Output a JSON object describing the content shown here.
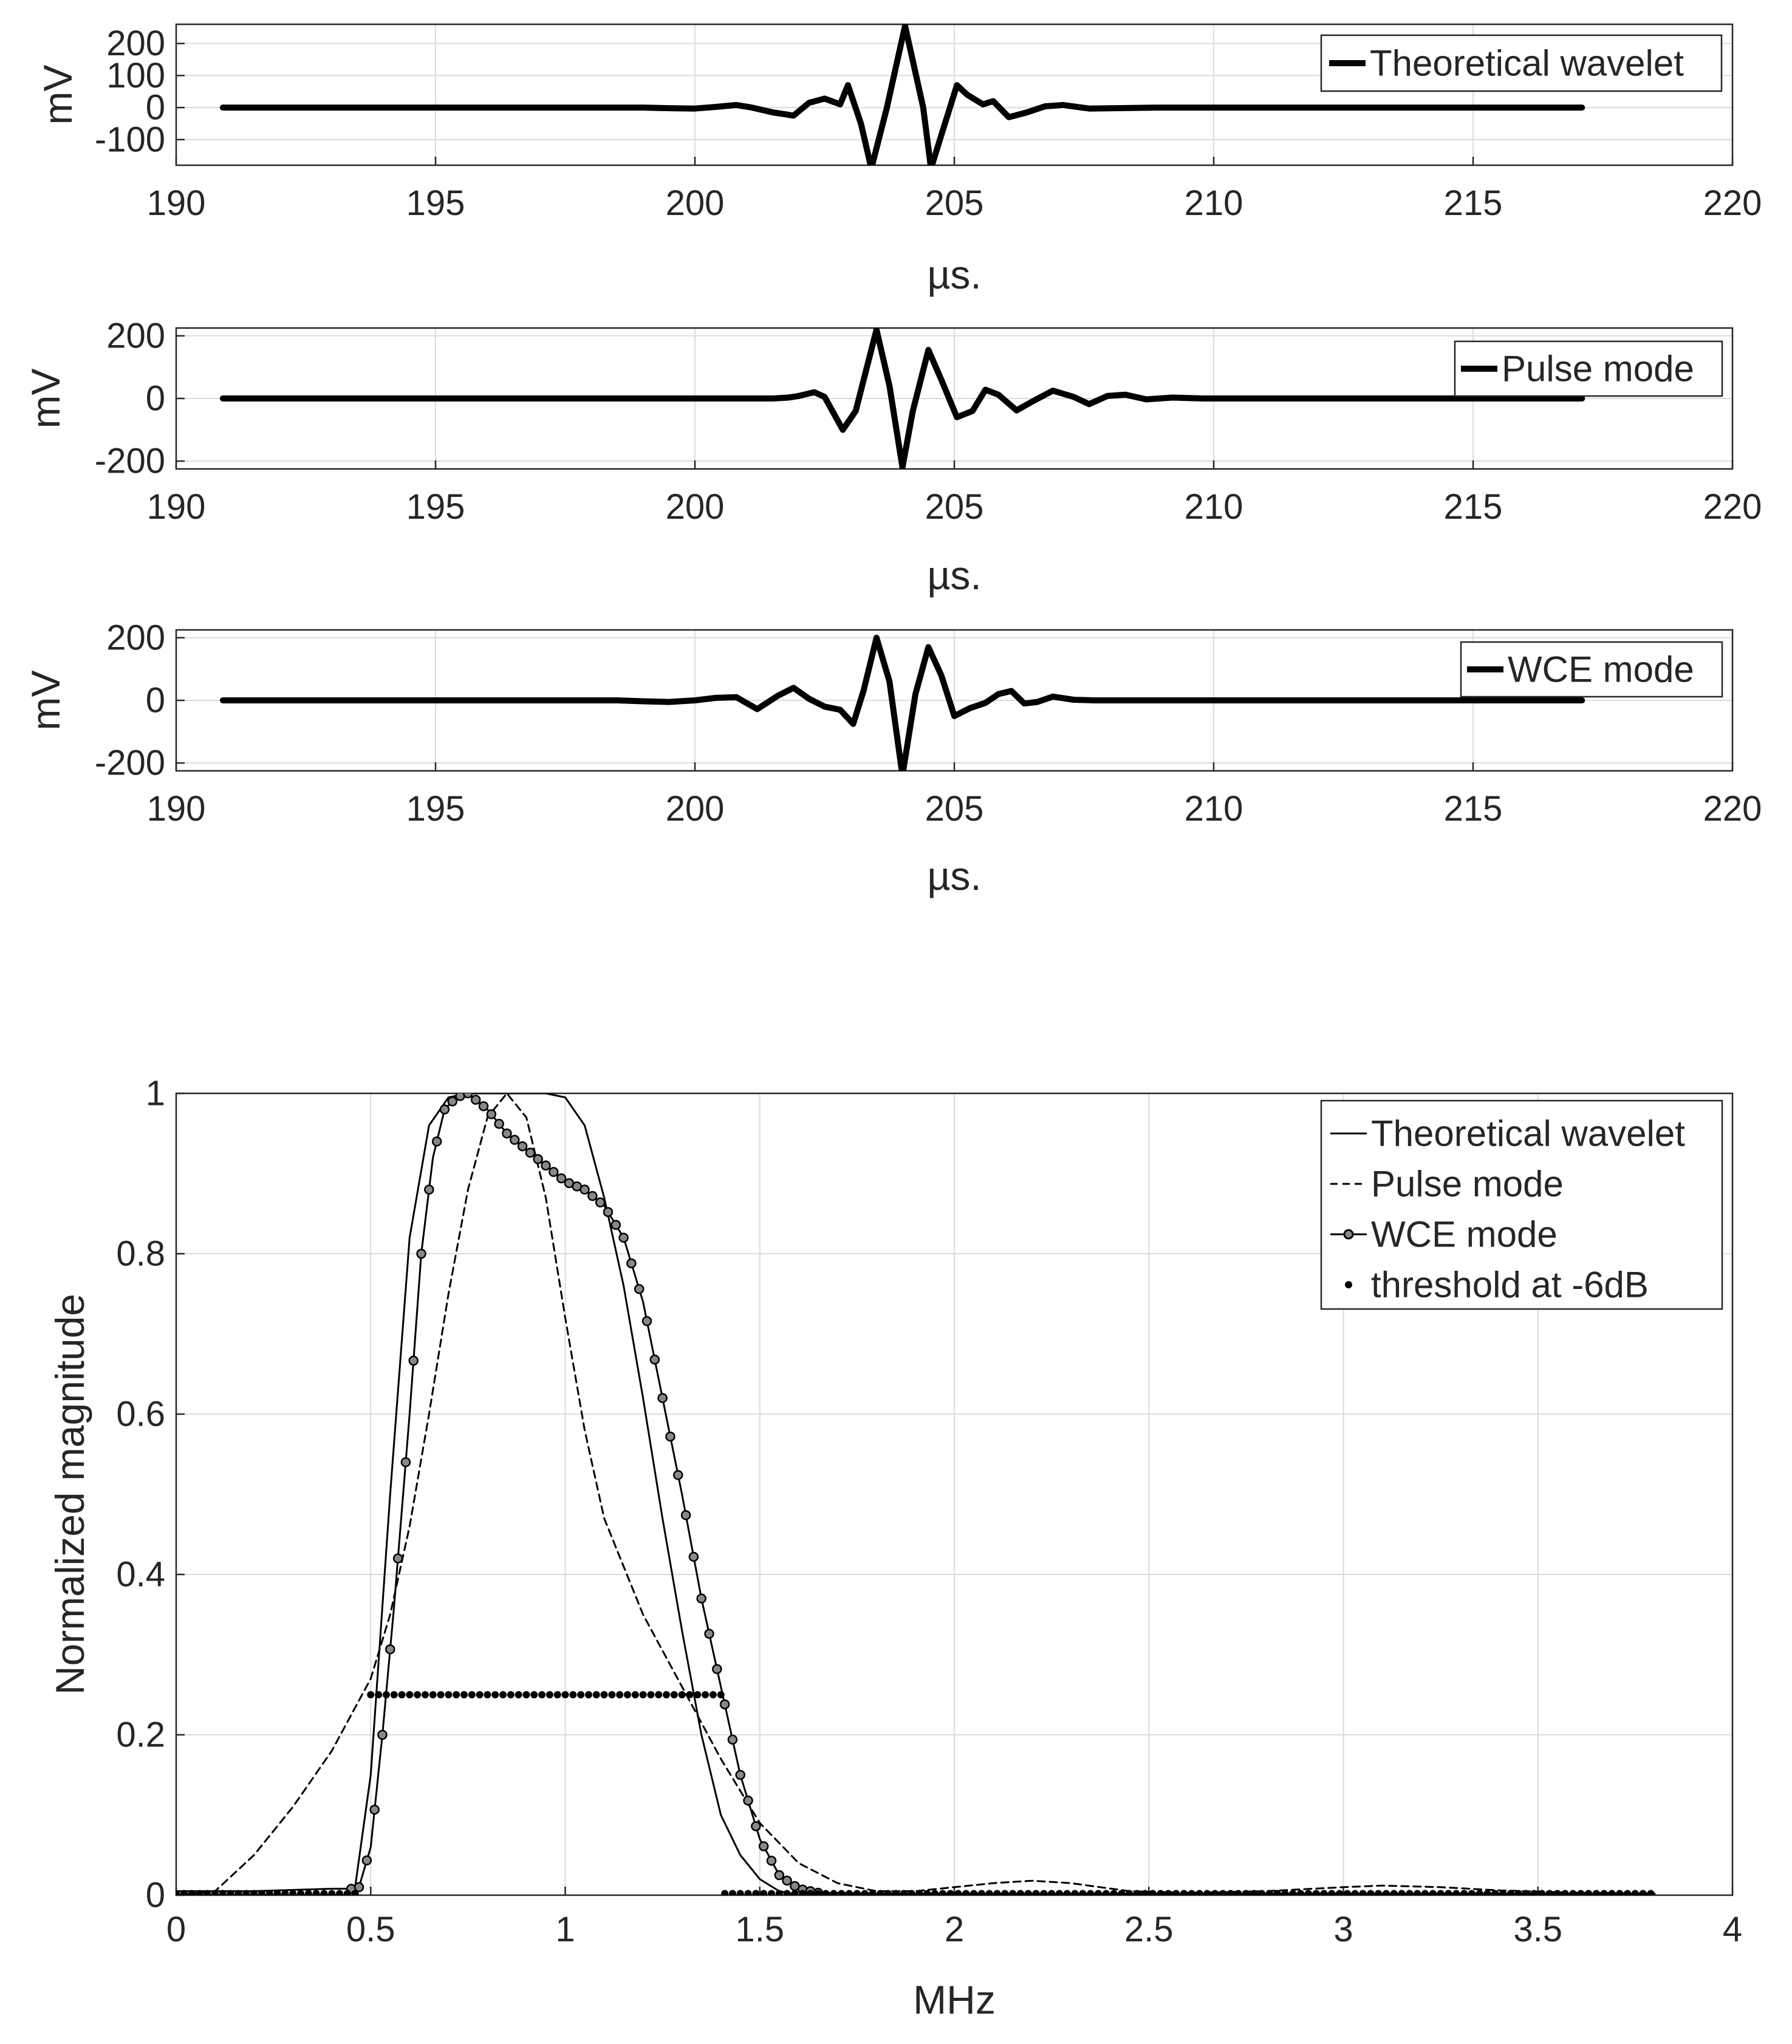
{
  "chart_data": [
    {
      "type": "line",
      "panel": "time-theoretical",
      "xlabel": "µs.",
      "ylabel": "mV",
      "xlim": [
        190,
        220
      ],
      "ylim": [
        -180,
        260
      ],
      "xticks": [
        190,
        195,
        200,
        205,
        210,
        215,
        220
      ],
      "xtick_labels": [
        "190",
        "195",
        "200",
        "205",
        "210",
        "215",
        "220"
      ],
      "yticks": [
        200,
        100,
        0,
        -100
      ],
      "ytick_labels": [
        "200",
        "100",
        "0",
        "-100"
      ],
      "grid": true,
      "legend": {
        "position": "top-right",
        "entries": [
          "Theoretical wavelet"
        ]
      },
      "series": [
        {
          "name": "Theoretical wavelet",
          "style": "thick-solid",
          "x": [
            190.9,
            199,
            199.5,
            200,
            200.4,
            200.8,
            201.1,
            201.5,
            201.9,
            202.2,
            202.5,
            202.8,
            202.95,
            203.2,
            203.4,
            203.7,
            204.05,
            204.4,
            204.55,
            204.8,
            205.05,
            205.25,
            205.55,
            205.75,
            206.05,
            206.4,
            206.75,
            207.1,
            207.6,
            208.1,
            209,
            217.1
          ],
          "values": [
            0,
            0,
            -2,
            -3,
            2,
            8,
            0,
            -15,
            -25,
            15,
            28,
            10,
            70,
            -50,
            -190,
            0,
            255,
            0,
            -190,
            -60,
            70,
            40,
            10,
            20,
            -30,
            -15,
            4,
            8,
            -3,
            -2,
            0,
            0
          ]
        }
      ]
    },
    {
      "type": "line",
      "panel": "time-pulse",
      "xlabel": "µs.",
      "ylabel": "mV",
      "xlim": [
        190,
        220
      ],
      "ylim": [
        -225,
        225
      ],
      "xticks": [
        190,
        195,
        200,
        205,
        210,
        215,
        220
      ],
      "xtick_labels": [
        "190",
        "195",
        "200",
        "205",
        "210",
        "215",
        "220"
      ],
      "yticks": [
        200,
        0,
        -200
      ],
      "ytick_labels": [
        "200",
        "0",
        "-200"
      ],
      "grid": true,
      "legend": {
        "position": "top-right",
        "entries": [
          "Pulse mode"
        ]
      },
      "series": [
        {
          "name": "Pulse mode",
          "style": "thick-solid",
          "x": [
            190.9,
            201.5,
            201.8,
            202.0,
            202.3,
            202.5,
            202.85,
            203.1,
            203.5,
            203.75,
            204.0,
            204.2,
            204.5,
            204.75,
            205.05,
            205.35,
            205.6,
            205.85,
            206.2,
            206.5,
            206.9,
            207.3,
            207.6,
            207.95,
            208.3,
            208.7,
            209.2,
            209.8,
            217.1
          ],
          "values": [
            0,
            0,
            3,
            8,
            20,
            5,
            -100,
            -40,
            220,
            40,
            -220,
            -40,
            155,
            60,
            -60,
            -40,
            28,
            12,
            -38,
            -10,
            25,
            5,
            -18,
            8,
            12,
            -3,
            3,
            0,
            0
          ]
        }
      ]
    },
    {
      "type": "line",
      "panel": "time-wce",
      "xlabel": "µs.",
      "ylabel": "mV",
      "xlim": [
        190,
        220
      ],
      "ylim": [
        -225,
        225
      ],
      "xticks": [
        190,
        195,
        200,
        205,
        210,
        215,
        220
      ],
      "xtick_labels": [
        "190",
        "195",
        "200",
        "205",
        "210",
        "215",
        "220"
      ],
      "yticks": [
        200,
        0,
        -200
      ],
      "ytick_labels": [
        "200",
        "0",
        "-200"
      ],
      "grid": true,
      "legend": {
        "position": "top-right",
        "entries": [
          "WCE mode"
        ]
      },
      "series": [
        {
          "name": "WCE mode",
          "style": "thick-solid",
          "x": [
            190.9,
            198.5,
            199.0,
            199.5,
            200.0,
            200.4,
            200.8,
            201.2,
            201.6,
            201.9,
            202.2,
            202.5,
            202.8,
            203.05,
            203.25,
            203.5,
            203.75,
            204.0,
            204.25,
            204.5,
            204.75,
            205.0,
            205.3,
            205.6,
            205.85,
            206.1,
            206.35,
            206.6,
            206.9,
            207.3,
            207.7,
            208.2,
            217.1
          ],
          "values": [
            0,
            0,
            -3,
            -5,
            0,
            8,
            10,
            -28,
            15,
            40,
            5,
            -20,
            -30,
            -75,
            30,
            200,
            60,
            -240,
            20,
            170,
            80,
            -50,
            -25,
            -8,
            20,
            30,
            -10,
            -5,
            12,
            2,
            0,
            0,
            0
          ]
        }
      ]
    },
    {
      "type": "line",
      "panel": "spectrum",
      "xlabel": "MHz",
      "ylabel": "Normalized magnitude",
      "xlim": [
        0,
        4
      ],
      "ylim": [
        0,
        1
      ],
      "xticks": [
        0,
        0.5,
        1,
        1.5,
        2,
        2.5,
        3,
        3.5,
        4
      ],
      "xtick_labels": [
        "0",
        "0.5",
        "1",
        "1.5",
        "2",
        "2.5",
        "3",
        "3.5",
        "4"
      ],
      "yticks": [
        0,
        0.2,
        0.4,
        0.6,
        0.8,
        1
      ],
      "ytick_labels": [
        "0",
        "0.2",
        "0.4",
        "0.6",
        "0.8",
        "1"
      ],
      "grid": true,
      "legend": {
        "position": "top-right",
        "entries": [
          "Theoretical wavelet",
          "Pulse mode",
          "WCE mode",
          "threshold at -6dB"
        ]
      },
      "series": [
        {
          "name": "Theoretical wavelet",
          "style": "thin-solid",
          "x": [
            0,
            0.44,
            0.46,
            0.5,
            0.55,
            0.6,
            0.65,
            0.7,
            0.75,
            0.8,
            0.85,
            0.9,
            0.95,
            1.0,
            1.05,
            1.1,
            1.15,
            1.2,
            1.25,
            1.3,
            1.35,
            1.4,
            1.45,
            1.5,
            1.55,
            1.6,
            1.7,
            2.0,
            3.8
          ],
          "values": [
            0,
            0,
            0.01,
            0.15,
            0.5,
            0.82,
            0.96,
            0.995,
            1.0,
            1.0,
            1.0,
            1.0,
            1.0,
            0.995,
            0.96,
            0.87,
            0.76,
            0.62,
            0.47,
            0.33,
            0.2,
            0.1,
            0.05,
            0.02,
            0.005,
            0,
            0,
            0,
            0
          ]
        },
        {
          "name": "Pulse mode",
          "style": "dashed",
          "x": [
            0,
            0.1,
            0.2,
            0.3,
            0.4,
            0.5,
            0.55,
            0.6,
            0.65,
            0.7,
            0.75,
            0.8,
            0.85,
            0.9,
            0.95,
            1.0,
            1.05,
            1.1,
            1.2,
            1.3,
            1.4,
            1.5,
            1.6,
            1.7,
            1.8,
            1.9,
            2.0,
            2.1,
            2.2,
            2.3,
            2.45,
            2.6,
            2.8,
            3.0,
            3.1,
            3.25,
            3.4,
            3.6,
            3.8
          ],
          "values": [
            0,
            0.005,
            0.05,
            0.11,
            0.18,
            0.27,
            0.35,
            0.46,
            0.6,
            0.75,
            0.88,
            0.97,
            1.0,
            0.97,
            0.87,
            0.72,
            0.58,
            0.47,
            0.35,
            0.26,
            0.17,
            0.09,
            0.04,
            0.015,
            0.005,
            0.005,
            0.01,
            0.015,
            0.018,
            0.015,
            0.005,
            0.003,
            0.005,
            0.01,
            0.012,
            0.01,
            0.006,
            0.003,
            0.002
          ]
        },
        {
          "name": "WCE mode",
          "style": "solid-circle-markers",
          "x": [
            0,
            0.2,
            0.4,
            0.45,
            0.47,
            0.5,
            0.53,
            0.56,
            0.6,
            0.63,
            0.66,
            0.69,
            0.72,
            0.75,
            0.8,
            0.85,
            0.9,
            0.95,
            1.0,
            1.05,
            1.1,
            1.15,
            1.2,
            1.25,
            1.3,
            1.35,
            1.4,
            1.45,
            1.5,
            1.55,
            1.6,
            1.65,
            1.8,
            2.0,
            2.5,
            3.0,
            3.5,
            3.8
          ],
          "values": [
            0.005,
            0.005,
            0.008,
            0.008,
            0.01,
            0.06,
            0.2,
            0.36,
            0.6,
            0.8,
            0.92,
            0.98,
            0.995,
            1.0,
            0.98,
            0.95,
            0.93,
            0.91,
            0.89,
            0.88,
            0.86,
            0.82,
            0.74,
            0.62,
            0.5,
            0.37,
            0.26,
            0.15,
            0.07,
            0.025,
            0.008,
            0.003,
            0.002,
            0.002,
            0.002,
            0.002,
            0.002,
            0.002
          ]
        },
        {
          "name": "threshold at -6dB",
          "style": "dots",
          "x_range": [
            0.5,
            1.4
          ],
          "value": 0.25,
          "baseline_ranges": [
            [
              0,
              0.47
            ],
            [
              1.41,
              3.8
            ]
          ]
        }
      ]
    }
  ]
}
